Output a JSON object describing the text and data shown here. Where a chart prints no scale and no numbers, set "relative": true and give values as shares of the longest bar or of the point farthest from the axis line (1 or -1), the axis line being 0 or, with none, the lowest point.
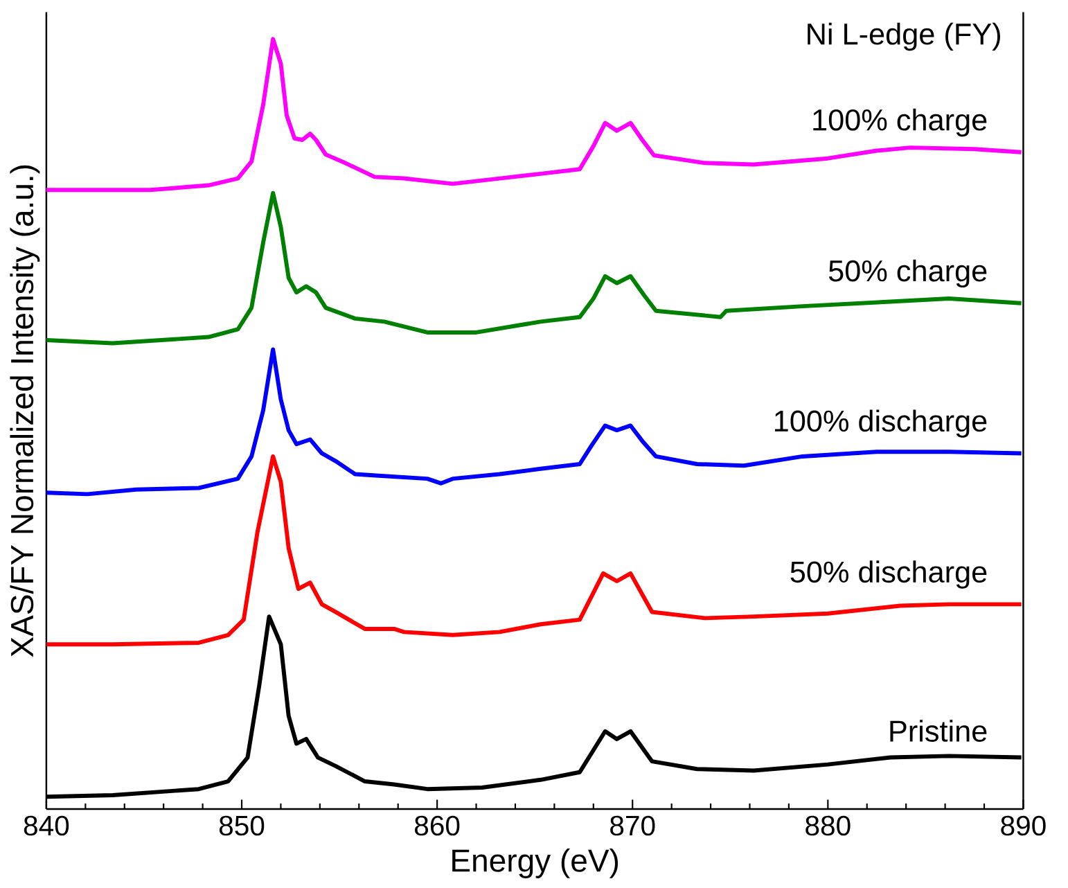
{
  "chart_data": {
    "type": "line",
    "title": "Ni L-edge (FY)",
    "xlabel": "Energy (eV)",
    "ylabel": "XAS/FY Normalized Intensity (a.u.)",
    "relative": true,
    "xlim": [
      840,
      890
    ],
    "xticks": [
      840,
      850,
      860,
      870,
      880,
      890
    ],
    "series": [
      {
        "name": "Pristine",
        "color": "#000000",
        "x": [
          840,
          843.4,
          847.8,
          849.3,
          850.3,
          850.9,
          851.4,
          852.0,
          852.4,
          852.8,
          853.3,
          853.9,
          854.8,
          856.3,
          857.8,
          859.5,
          862.3,
          865.3,
          867.3,
          868.6,
          869.2,
          869.9,
          871.0,
          873.3,
          876.2,
          880.0,
          883.2,
          886.2,
          889.9
        ],
        "values": [
          0.016,
          0.018,
          0.026,
          0.036,
          0.067,
          0.161,
          0.25,
          0.214,
          0.121,
          0.085,
          0.091,
          0.067,
          0.056,
          0.036,
          0.032,
          0.026,
          0.028,
          0.038,
          0.048,
          0.101,
          0.091,
          0.101,
          0.062,
          0.052,
          0.05,
          0.058,
          0.067,
          0.069,
          0.067
        ]
      },
      {
        "name": "50% discharge",
        "color": "#ff0000",
        "x": [
          840,
          843.4,
          847.8,
          849.3,
          850.1,
          850.8,
          851.6,
          852.0,
          852.4,
          852.9,
          853.5,
          854.1,
          854.8,
          856.3,
          857.8,
          858.3,
          860.8,
          863.2,
          865.3,
          867.3,
          868.5,
          869.2,
          869.9,
          871.0,
          873.7,
          876.2,
          880.0,
          883.7,
          886.2,
          889.9
        ],
        "values": [
          0.214,
          0.214,
          0.216,
          0.226,
          0.246,
          0.359,
          0.458,
          0.425,
          0.339,
          0.286,
          0.294,
          0.266,
          0.256,
          0.234,
          0.234,
          0.23,
          0.226,
          0.23,
          0.24,
          0.246,
          0.306,
          0.296,
          0.306,
          0.256,
          0.248,
          0.25,
          0.254,
          0.264,
          0.266,
          0.266
        ]
      },
      {
        "name": "100% discharge",
        "color": "#0000ff",
        "x": [
          840,
          842.1,
          844.6,
          847.8,
          849.8,
          850.5,
          851.1,
          851.6,
          852.0,
          852.4,
          852.8,
          853.5,
          854.1,
          854.8,
          855.8,
          857.0,
          859.5,
          860.2,
          860.8,
          863.2,
          865.3,
          867.3,
          867.9,
          868.6,
          869.2,
          869.9,
          870.5,
          871.2,
          873.3,
          875.7,
          878.7,
          882.5,
          886.2,
          889.9
        ],
        "values": [
          0.411,
          0.409,
          0.415,
          0.417,
          0.429,
          0.458,
          0.518,
          0.597,
          0.532,
          0.492,
          0.474,
          0.48,
          0.462,
          0.452,
          0.435,
          0.433,
          0.429,
          0.423,
          0.429,
          0.435,
          0.442,
          0.448,
          0.472,
          0.498,
          0.492,
          0.498,
          0.478,
          0.458,
          0.448,
          0.446,
          0.458,
          0.464,
          0.464,
          0.462
        ]
      },
      {
        "name": "50% charge",
        "color": "#008000",
        "x": [
          840,
          843.4,
          848.3,
          849.8,
          850.5,
          851.1,
          851.6,
          852.0,
          852.4,
          852.8,
          853.3,
          853.8,
          854.3,
          855.8,
          857.3,
          859.5,
          862.0,
          865.3,
          867.3,
          868.0,
          868.6,
          869.2,
          869.9,
          870.6,
          871.2,
          874.5,
          874.8,
          878.7,
          883.2,
          886.2,
          889.9
        ],
        "values": [
          0.609,
          0.605,
          0.613,
          0.623,
          0.651,
          0.736,
          0.8,
          0.756,
          0.69,
          0.671,
          0.679,
          0.671,
          0.651,
          0.637,
          0.633,
          0.619,
          0.619,
          0.633,
          0.639,
          0.663,
          0.692,
          0.683,
          0.692,
          0.667,
          0.647,
          0.639,
          0.647,
          0.653,
          0.659,
          0.663,
          0.657
        ]
      },
      {
        "name": "100% charge",
        "color": "#ff00ff",
        "x": [
          840,
          845.3,
          848.3,
          849.8,
          850.5,
          851.1,
          851.6,
          852.0,
          852.3,
          852.7,
          853.1,
          853.5,
          853.8,
          854.3,
          855.3,
          856.8,
          858.3,
          860.8,
          863.2,
          865.3,
          867.3,
          868.0,
          868.6,
          869.2,
          869.9,
          870.5,
          871.1,
          873.7,
          876.2,
          880.0,
          882.5,
          884.2,
          887.5,
          889.9
        ],
        "values": [
          0.804,
          0.804,
          0.81,
          0.819,
          0.841,
          0.915,
          1.0,
          0.968,
          0.901,
          0.871,
          0.869,
          0.877,
          0.869,
          0.85,
          0.839,
          0.821,
          0.819,
          0.812,
          0.819,
          0.825,
          0.831,
          0.861,
          0.891,
          0.881,
          0.891,
          0.869,
          0.849,
          0.839,
          0.837,
          0.845,
          0.855,
          0.859,
          0.857,
          0.853
        ]
      }
    ]
  }
}
